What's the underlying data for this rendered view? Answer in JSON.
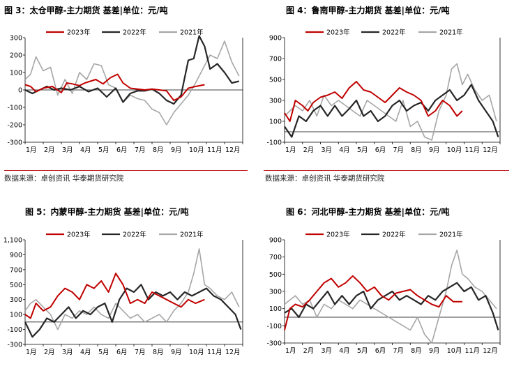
{
  "source_note": "数据来源：卓创资讯  华泰期货研究院",
  "legend": [
    "2023年",
    "2022年",
    "2021年"
  ],
  "series_colors": {
    "2023年": "#c00000",
    "2022年": "#262626",
    "2021年": "#a6a6a6"
  },
  "charts": [
    {
      "title": "图 3：太仓甲醇-主力期货  基差|单位：元/吨",
      "chart_data": {
        "type": "line",
        "x_months": [
          "1月",
          "2月",
          "3月",
          "4月",
          "5月",
          "6月",
          "7月",
          "8月",
          "9月",
          "10月",
          "11月",
          "12月"
        ],
        "yticks": [
          "300",
          "200",
          "100",
          "0",
          "-100",
          "-200",
          "-300"
        ],
        "ylim": [
          -300,
          300
        ],
        "series": [
          {
            "name": "2023年",
            "x": [
              1.0,
              1.3,
              1.6,
              2.0,
              2.5,
              3.0,
              3.3,
              3.6,
              4.0,
              4.3,
              4.6,
              4.9,
              5.3,
              5.7,
              6.1,
              6.4,
              6.8,
              7.2,
              7.6,
              8.0,
              8.4,
              8.8,
              9.2,
              9.6,
              10.0,
              10.4,
              10.9
            ],
            "y": [
              30,
              20,
              -10,
              10,
              20,
              -15,
              40,
              35,
              25,
              40,
              50,
              60,
              35,
              70,
              90,
              40,
              10,
              5,
              0,
              5,
              0,
              -5,
              -60,
              -40,
              10,
              20,
              30
            ]
          },
          {
            "name": "2022年",
            "x": [
              1.0,
              1.4,
              1.8,
              2.2,
              2.6,
              3.0,
              3.5,
              4.0,
              4.5,
              5.0,
              5.5,
              6.0,
              6.4,
              6.8,
              7.2,
              7.6,
              8.0,
              8.4,
              8.8,
              9.2,
              9.6,
              10.0,
              10.3,
              10.6,
              10.9,
              11.2,
              11.6,
              12.0,
              12.4,
              12.8
            ],
            "y": [
              0,
              -20,
              0,
              20,
              0,
              10,
              0,
              20,
              -10,
              10,
              -40,
              10,
              -70,
              -20,
              -5,
              -5,
              5,
              -20,
              -60,
              -80,
              -30,
              170,
              180,
              310,
              250,
              120,
              150,
              100,
              40,
              50
            ]
          },
          {
            "name": "2021年",
            "x": [
              1.0,
              1.3,
              1.6,
              2.0,
              2.4,
              2.8,
              3.2,
              3.6,
              4.0,
              4.4,
              4.8,
              5.2,
              5.6,
              6.0,
              6.4,
              6.8,
              7.2,
              7.6,
              8.0,
              8.4,
              8.8,
              9.2,
              9.6,
              10.0,
              10.4,
              10.8,
              11.2,
              11.6,
              12.0,
              12.4,
              12.8
            ],
            "y": [
              60,
              90,
              190,
              110,
              130,
              -30,
              60,
              -20,
              100,
              60,
              150,
              140,
              30,
              10,
              -70,
              -30,
              -50,
              -60,
              -110,
              -130,
              -200,
              -130,
              -80,
              -30,
              40,
              120,
              200,
              180,
              280,
              160,
              80
            ]
          }
        ]
      }
    },
    {
      "title": "图 4：鲁南甲醇-主力期货  基差|单位：元/吨",
      "chart_data": {
        "type": "line",
        "x_months": [
          "1月",
          "2月",
          "3月",
          "4月",
          "5月",
          "6月",
          "7月",
          "8月",
          "9月",
          "10月",
          "11月",
          "12月"
        ],
        "yticks": [
          "900",
          "700",
          "500",
          "300",
          "100",
          "-100"
        ],
        "ylim": [
          -100,
          900
        ],
        "series": [
          {
            "name": "2023年",
            "x": [
              1.0,
              1.3,
              1.6,
              2.0,
              2.3,
              2.6,
              3.0,
              3.4,
              3.8,
              4.2,
              4.6,
              5.0,
              5.4,
              5.8,
              6.2,
              6.6,
              7.0,
              7.4,
              7.8,
              8.2,
              8.6,
              9.0,
              9.4,
              9.8,
              10.2,
              10.6,
              10.9
            ],
            "y": [
              180,
              100,
              300,
              250,
              200,
              280,
              330,
              350,
              380,
              320,
              420,
              480,
              400,
              380,
              330,
              280,
              350,
              420,
              380,
              350,
              300,
              150,
              200,
              300,
              250,
              150,
              200
            ]
          },
          {
            "name": "2022年",
            "x": [
              1.0,
              1.4,
              1.8,
              2.2,
              2.6,
              3.0,
              3.4,
              3.8,
              4.2,
              4.6,
              5.0,
              5.4,
              5.8,
              6.2,
              6.6,
              7.0,
              7.4,
              7.8,
              8.2,
              8.6,
              9.0,
              9.4,
              9.8,
              10.2,
              10.6,
              11.0,
              11.4,
              11.8,
              12.2,
              12.6,
              12.9
            ],
            "y": [
              50,
              -50,
              150,
              100,
              200,
              250,
              150,
              250,
              150,
              220,
              300,
              150,
              200,
              100,
              150,
              250,
              300,
              200,
              250,
              280,
              200,
              300,
              350,
              400,
              300,
              350,
              450,
              300,
              200,
              100,
              -50
            ]
          },
          {
            "name": "2021年",
            "x": [
              1.0,
              1.3,
              1.6,
              2.0,
              2.4,
              2.8,
              3.2,
              3.6,
              4.0,
              4.4,
              4.8,
              5.2,
              5.6,
              6.0,
              6.4,
              6.8,
              7.2,
              7.6,
              8.0,
              8.4,
              8.8,
              9.2,
              9.6,
              10.0,
              10.3,
              10.6,
              10.9,
              11.2,
              11.6,
              12.0,
              12.4,
              12.8
            ],
            "y": [
              150,
              200,
              250,
              200,
              300,
              150,
              350,
              250,
              300,
              250,
              200,
              150,
              300,
              250,
              200,
              150,
              100,
              300,
              50,
              100,
              -50,
              -80,
              200,
              350,
              600,
              650,
              450,
              550,
              400,
              300,
              350,
              100
            ]
          }
        ]
      }
    },
    {
      "title": "图 5：内蒙甲醇-主力期货  基差|单位：元/吨",
      "chart_data": {
        "type": "line",
        "x_months": [
          "1月",
          "2月",
          "3月",
          "4月",
          "5月",
          "6月",
          "7月",
          "8月",
          "9月",
          "10月",
          "11月",
          "12月"
        ],
        "yticks": [
          "1,100",
          "900",
          "700",
          "500",
          "300",
          "100",
          "-100",
          "-300"
        ],
        "ylim": [
          -300,
          1100
        ],
        "series": [
          {
            "name": "2023年",
            "x": [
              1.0,
              1.3,
              1.6,
              2.0,
              2.4,
              2.8,
              3.2,
              3.6,
              4.0,
              4.4,
              4.8,
              5.2,
              5.6,
              6.0,
              6.4,
              6.8,
              7.2,
              7.6,
              8.0,
              8.4,
              8.8,
              9.2,
              9.6,
              10.0,
              10.4,
              10.9
            ],
            "y": [
              100,
              50,
              250,
              150,
              200,
              350,
              450,
              400,
              300,
              500,
              450,
              550,
              400,
              650,
              500,
              250,
              300,
              250,
              400,
              350,
              300,
              250,
              200,
              300,
              250,
              300
            ]
          },
          {
            "name": "2022年",
            "x": [
              1.0,
              1.4,
              1.8,
              2.2,
              2.6,
              3.0,
              3.4,
              3.8,
              4.2,
              4.6,
              5.0,
              5.4,
              5.8,
              6.2,
              6.6,
              7.0,
              7.4,
              7.8,
              8.2,
              8.6,
              9.0,
              9.4,
              9.8,
              10.2,
              10.6,
              11.0,
              11.4,
              11.8,
              12.2,
              12.6,
              12.9
            ],
            "y": [
              0,
              -200,
              -100,
              50,
              0,
              100,
              200,
              50,
              150,
              100,
              200,
              250,
              0,
              300,
              450,
              400,
              500,
              300,
              400,
              350,
              400,
              300,
              400,
              350,
              400,
              450,
              350,
              300,
              200,
              100,
              -100
            ]
          },
          {
            "name": "2021年",
            "x": [
              1.0,
              1.3,
              1.6,
              2.0,
              2.4,
              2.8,
              3.2,
              3.6,
              4.0,
              4.4,
              4.8,
              5.2,
              5.6,
              6.0,
              6.4,
              6.8,
              7.2,
              7.6,
              8.0,
              8.4,
              8.8,
              9.2,
              9.6,
              10.0,
              10.3,
              10.6,
              10.9,
              11.2,
              11.6,
              12.0,
              12.4,
              12.8
            ],
            "y": [
              150,
              250,
              300,
              200,
              100,
              -100,
              100,
              50,
              150,
              100,
              200,
              100,
              50,
              250,
              150,
              50,
              100,
              0,
              50,
              100,
              0,
              150,
              250,
              400,
              650,
              980,
              500,
              450,
              350,
              300,
              400,
              200
            ]
          }
        ]
      }
    },
    {
      "title": "图 6：河北甲醇-主力期货  基差|单位：元/吨",
      "chart_data": {
        "type": "line",
        "x_months": [
          "1月",
          "2月",
          "3月",
          "4月",
          "5月",
          "6月",
          "7月",
          "8月",
          "9月",
          "10月",
          "11月",
          "12月"
        ],
        "yticks": [
          "900",
          "700",
          "500",
          "300",
          "100",
          "-100",
          "-300"
        ],
        "ylim": [
          -300,
          900
        ],
        "series": [
          {
            "name": "2023年",
            "x": [
              1.0,
              1.3,
              1.6,
              2.0,
              2.4,
              2.8,
              3.2,
              3.6,
              4.0,
              4.4,
              4.8,
              5.2,
              5.6,
              6.0,
              6.4,
              6.8,
              7.2,
              7.6,
              8.0,
              8.4,
              8.8,
              9.2,
              9.6,
              10.0,
              10.4,
              10.9
            ],
            "y": [
              -150,
              100,
              150,
              120,
              200,
              300,
              400,
              450,
              350,
              400,
              480,
              400,
              300,
              350,
              250,
              200,
              280,
              300,
              320,
              250,
              200,
              150,
              120,
              250,
              180,
              180
            ]
          },
          {
            "name": "2022年",
            "x": [
              1.0,
              1.4,
              1.8,
              2.2,
              2.6,
              3.0,
              3.4,
              3.8,
              4.2,
              4.6,
              5.0,
              5.4,
              5.8,
              6.2,
              6.6,
              7.0,
              7.4,
              7.8,
              8.2,
              8.6,
              9.0,
              9.4,
              9.8,
              10.2,
              10.6,
              11.0,
              11.4,
              11.8,
              12.2,
              12.6,
              12.9
            ],
            "y": [
              50,
              100,
              0,
              150,
              100,
              200,
              300,
              150,
              250,
              150,
              250,
              300,
              100,
              200,
              250,
              300,
              200,
              250,
              200,
              150,
              250,
              200,
              300,
              350,
              400,
              300,
              350,
              200,
              250,
              50,
              -150
            ]
          },
          {
            "name": "2021年",
            "x": [
              1.0,
              1.3,
              1.6,
              2.0,
              2.4,
              2.8,
              3.2,
              3.6,
              4.0,
              4.4,
              4.8,
              5.2,
              5.6,
              6.0,
              6.4,
              6.8,
              7.2,
              7.6,
              8.0,
              8.4,
              8.8,
              9.2,
              9.6,
              10.0,
              10.3,
              10.6,
              10.9,
              11.2,
              11.6,
              12.0,
              12.4,
              12.8
            ],
            "y": [
              150,
              200,
              250,
              150,
              200,
              0,
              150,
              100,
              200,
              150,
              100,
              200,
              150,
              100,
              50,
              0,
              -50,
              -100,
              -150,
              0,
              -200,
              -300,
              0,
              300,
              600,
              780,
              500,
              450,
              350,
              300,
              200,
              100
            ]
          }
        ]
      }
    }
  ]
}
